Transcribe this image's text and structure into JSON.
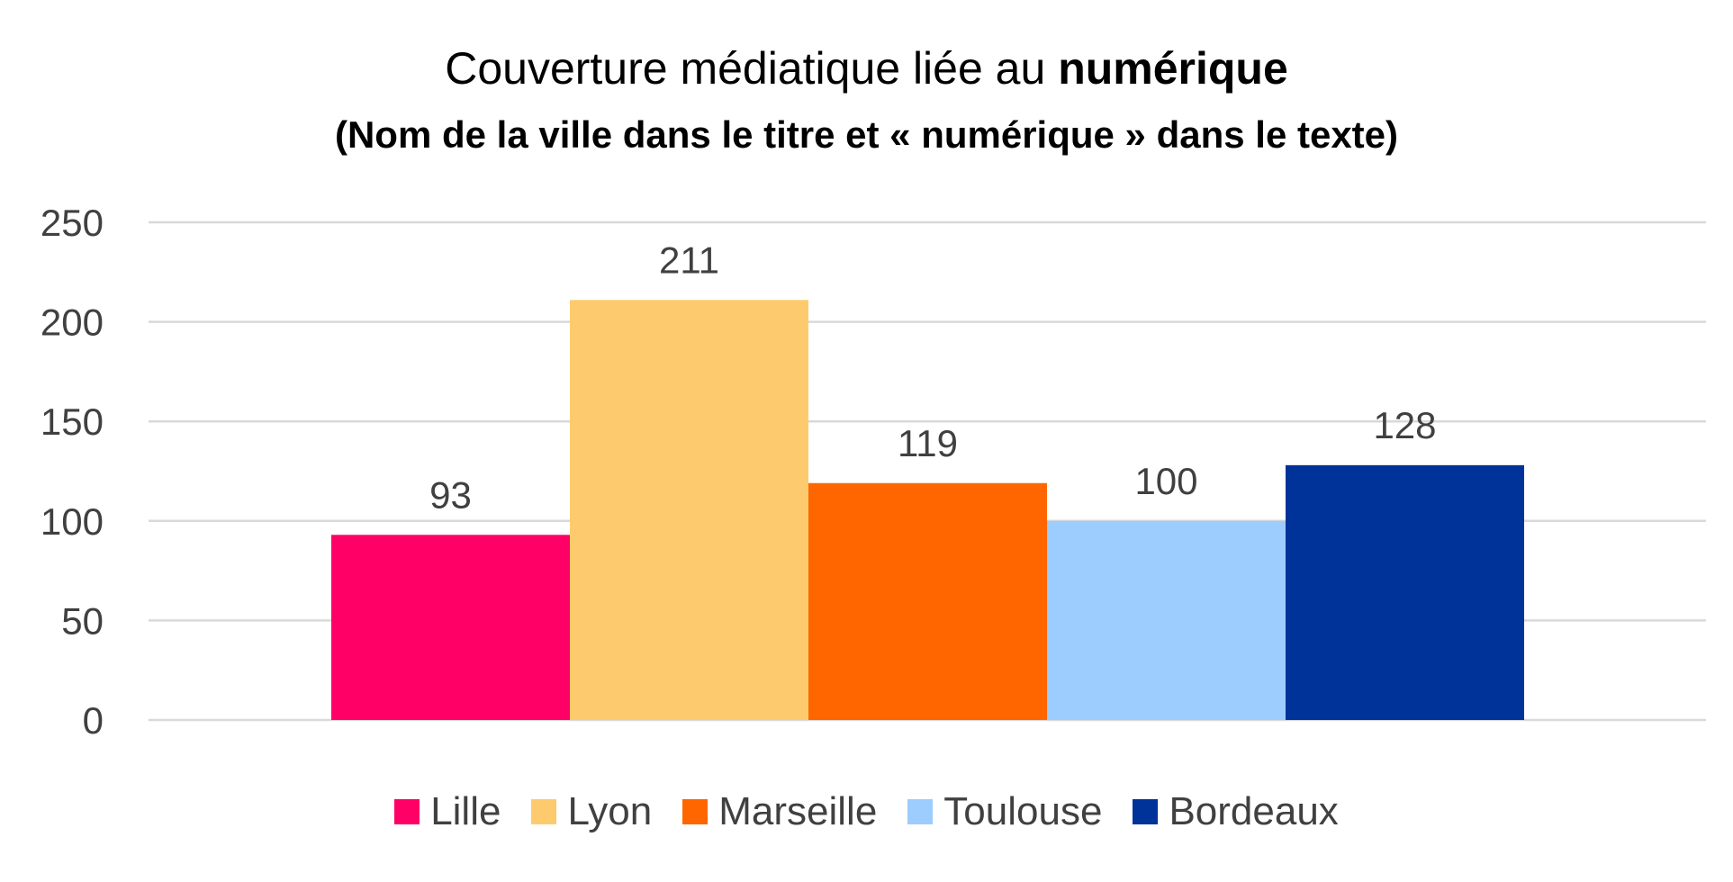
{
  "chart_data": {
    "type": "bar",
    "title_prefix": "Couverture médiatique liée au ",
    "title_emphasis": "numérique",
    "subtitle": "(Nom de la ville dans le titre et « numérique » dans le texte)",
    "xlabel": "",
    "ylabel": "",
    "ylim": [
      0,
      250
    ],
    "yticks": [
      "0",
      "50",
      "100",
      "150",
      "200",
      "250"
    ],
    "grid": true,
    "legend_position": "bottom",
    "series": [
      {
        "name": "Lille",
        "value": 93,
        "label": "93",
        "color": "#FF0066"
      },
      {
        "name": "Lyon",
        "value": 211,
        "label": "211",
        "color": "#FDCB6E"
      },
      {
        "name": "Marseille",
        "value": 119,
        "label": "119",
        "color": "#FF6600"
      },
      {
        "name": "Toulouse",
        "value": 100,
        "label": "100",
        "color": "#9DCCFF"
      },
      {
        "name": "Bordeaux",
        "value": 128,
        "label": "128",
        "color": "#003399"
      }
    ]
  }
}
